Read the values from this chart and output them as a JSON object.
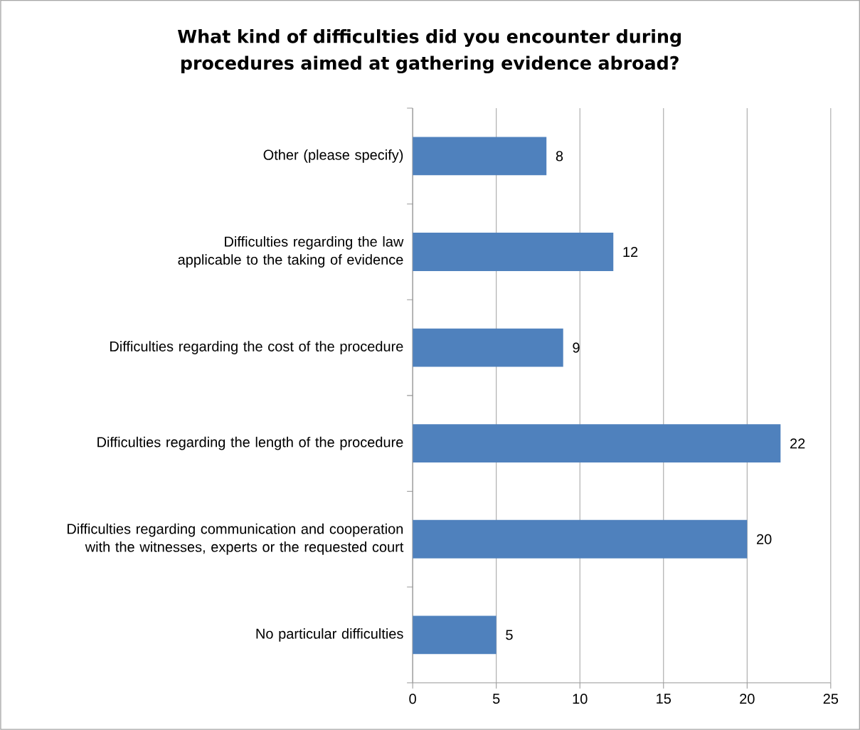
{
  "chart_data": {
    "type": "bar",
    "orientation": "horizontal",
    "title": "What kind of difficulties did you encounter during procedures aimed at gathering evidence abroad?",
    "categories": [
      "Other (please specify)",
      "Difficulties regarding the law applicable to the taking of evidence",
      "Difficulties regarding the cost of the procedure",
      "Difficulties regarding the length of the procedure",
      "Difficulties regarding communication and cooperation with the witnesses, experts or the requested court",
      "No particular difficulties"
    ],
    "values": [
      8,
      12,
      9,
      22,
      20,
      5
    ],
    "color": "#4f81bd",
    "xlim": [
      0,
      25
    ],
    "xticks": [
      0,
      5,
      10,
      15,
      20,
      25
    ],
    "grid": "x",
    "data_labels": true
  }
}
